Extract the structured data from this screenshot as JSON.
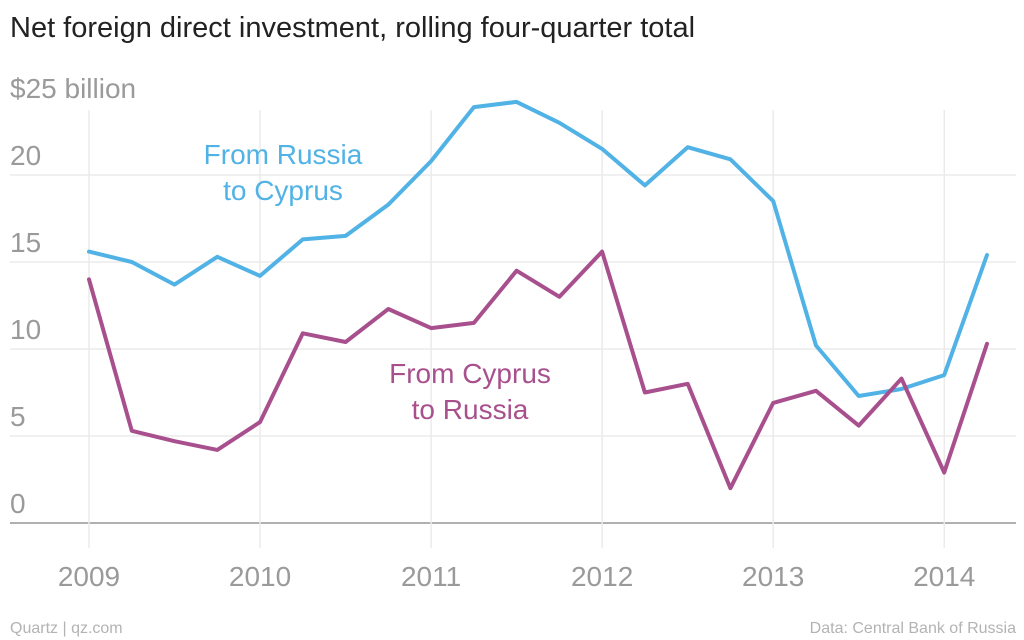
{
  "chart_data": {
    "type": "line",
    "title": "Net foreign direct investment, rolling four-quarter total",
    "y_unit_label": "$25 billion",
    "ylim": [
      0,
      25
    ],
    "yticks": [
      0,
      5,
      10,
      15,
      20
    ],
    "xlim": [
      2008.83,
      2014.33
    ],
    "xticks": [
      {
        "value": 2009,
        "label": "2009"
      },
      {
        "value": 2010,
        "label": "2010"
      },
      {
        "value": 2011,
        "label": "2011"
      },
      {
        "value": 2012,
        "label": "2012"
      },
      {
        "value": 2013,
        "label": "2013"
      },
      {
        "value": 2014,
        "label": "2014"
      }
    ],
    "series": [
      {
        "name_lines": [
          "From Russia",
          "to Cyprus"
        ],
        "color": "#51b2e5",
        "x": [
          2009.0,
          2009.25,
          2009.5,
          2009.75,
          2010.0,
          2010.25,
          2010.5,
          2010.75,
          2011.0,
          2011.25,
          2011.5,
          2011.75,
          2012.0,
          2012.25,
          2012.5,
          2012.75,
          2013.0,
          2013.25,
          2013.5,
          2013.75,
          2014.0,
          2014.25
        ],
        "y": [
          15.6,
          15.0,
          13.7,
          15.3,
          14.2,
          16.3,
          16.5,
          18.3,
          20.8,
          23.9,
          24.2,
          23.0,
          21.5,
          19.4,
          21.6,
          20.9,
          18.5,
          10.2,
          7.3,
          7.7,
          8.5,
          15.4
        ]
      },
      {
        "name_lines": [
          "From Cyprus",
          "to Russia"
        ],
        "color": "#a8508d",
        "x": [
          2009.0,
          2009.25,
          2009.5,
          2009.75,
          2010.0,
          2010.25,
          2010.5,
          2010.75,
          2011.0,
          2011.25,
          2011.5,
          2011.75,
          2012.0,
          2012.25,
          2012.5,
          2012.75,
          2013.0,
          2013.25,
          2013.5,
          2013.75,
          2014.0,
          2014.25
        ],
        "y": [
          14.0,
          5.3,
          4.7,
          4.2,
          5.8,
          10.9,
          10.4,
          12.3,
          11.2,
          11.5,
          14.5,
          13.0,
          15.6,
          7.5,
          8.0,
          2.0,
          6.9,
          7.6,
          5.6,
          8.3,
          2.9,
          10.3
        ]
      }
    ],
    "grid": true
  },
  "footer": {
    "left": "Quartz | qz.com",
    "right": "Data: Central Bank of Russia"
  }
}
